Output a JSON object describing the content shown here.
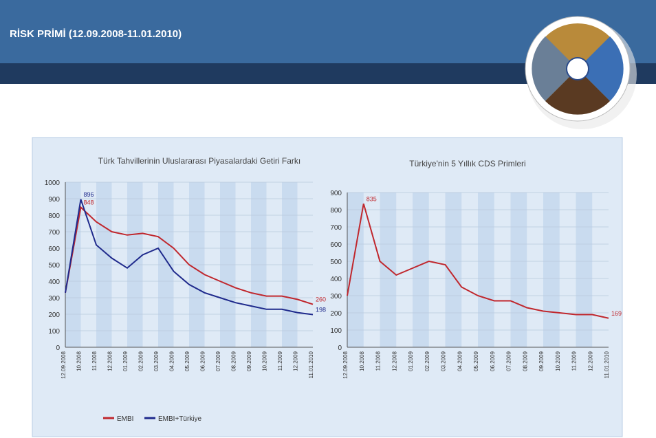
{
  "header": {
    "title": "RİSK PRİMİ (12.09.2008-11.01.2010)"
  },
  "chart_data": [
    {
      "type": "line",
      "title": "Türk Tahvillerinin Uluslararası Piyasalardaki Getiri Farkı",
      "categories": [
        "12.09.2008",
        "10.2008",
        "11.2008",
        "12.2008",
        "01.2009",
        "02.2009",
        "03.2009",
        "04.2009",
        "05.2009",
        "06.2009",
        "07.2009",
        "08.2009",
        "09.2009",
        "10.2009",
        "11.2009",
        "12.2009",
        "11.01.2010"
      ],
      "series": [
        {
          "name": "EMBI",
          "color": "#c0272d",
          "values": [
            330,
            848,
            760,
            700,
            680,
            690,
            670,
            600,
            500,
            440,
            400,
            360,
            330,
            310,
            310,
            290,
            260
          ],
          "value_labels": [
            null,
            "848",
            null,
            null,
            null,
            null,
            null,
            null,
            null,
            null,
            null,
            null,
            null,
            null,
            null,
            null,
            "260"
          ]
        },
        {
          "name": "EMBI+Türkiye",
          "color": "#1f2a8c",
          "values": [
            330,
            896,
            620,
            540,
            480,
            560,
            600,
            460,
            380,
            330,
            300,
            270,
            250,
            230,
            230,
            210,
            198
          ],
          "value_labels": [
            null,
            "896",
            null,
            null,
            null,
            null,
            null,
            null,
            null,
            null,
            null,
            null,
            null,
            null,
            null,
            null,
            "198"
          ]
        }
      ],
      "ylim": [
        0,
        1000
      ],
      "yticks": [
        0,
        100,
        200,
        300,
        400,
        500,
        600,
        700,
        800,
        900,
        1000
      ],
      "grid": true,
      "legend": "bottom"
    },
    {
      "type": "line",
      "title": "Türkiye'nin 5 Yıllık CDS Primleri",
      "categories": [
        "12.09.2008",
        "10.2008",
        "11.2008",
        "12.2008",
        "01.2009",
        "02.2009",
        "03.2009",
        "04.2009",
        "05.2009",
        "06.2009",
        "07.2009",
        "08.2009",
        "09.2009",
        "10.2009",
        "11.2009",
        "12.2009",
        "11.01.2010"
      ],
      "series": [
        {
          "color": "#c0272d",
          "values": [
            300,
            835,
            500,
            420,
            460,
            500,
            480,
            350,
            300,
            270,
            270,
            230,
            210,
            200,
            190,
            190,
            169
          ],
          "value_labels": [
            null,
            "835",
            null,
            null,
            null,
            null,
            null,
            null,
            null,
            null,
            null,
            null,
            null,
            null,
            null,
            null,
            "169"
          ]
        }
      ],
      "ylim": [
        0,
        900
      ],
      "yticks": [
        0,
        100,
        200,
        300,
        400,
        500,
        600,
        700,
        800,
        900
      ],
      "grid": true
    }
  ]
}
